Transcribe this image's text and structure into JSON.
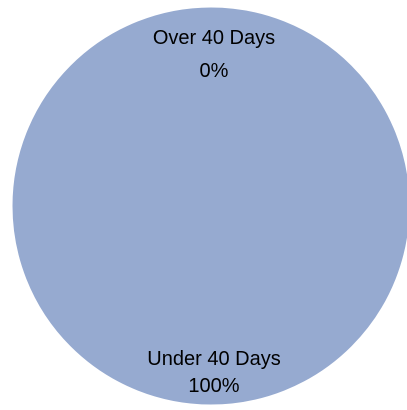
{
  "chart_data": {
    "type": "pie",
    "title": "",
    "slices": [
      {
        "label": "Under 40 Days",
        "value": 100,
        "percent_label": "100%",
        "color": "#96aad0"
      },
      {
        "label": "Over 40 Days",
        "value": 0,
        "percent_label": "0%",
        "color": "#c0504d"
      }
    ],
    "legend": "none",
    "edge_color": "#ffffff"
  }
}
